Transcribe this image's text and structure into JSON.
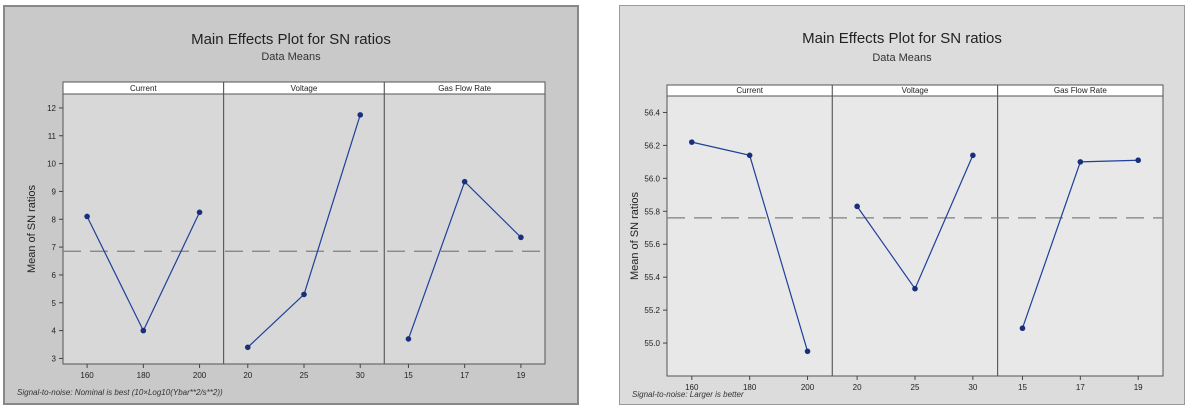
{
  "chart_data": [
    {
      "type": "line",
      "title": "Main Effects Plot for SN ratios",
      "subtitle": "Data Means",
      "ylabel": "Mean of SN ratios",
      "ylim": [
        2.8,
        12.5
      ],
      "yticks": [
        "3",
        "4",
        "5",
        "6",
        "7",
        "8",
        "9",
        "10",
        "11",
        "12"
      ],
      "reference_line": 6.85,
      "footnote": "Signal-to-noise: Nominal is best (10×Log10(Ybar**2/s**2))",
      "panels": [
        {
          "label": "Current",
          "categories": [
            "160",
            "180",
            "200"
          ],
          "values": [
            8.1,
            4.0,
            8.25
          ]
        },
        {
          "label": "Voltage",
          "categories": [
            "20",
            "25",
            "30"
          ],
          "values": [
            3.4,
            5.3,
            11.75
          ]
        },
        {
          "label": "Gas Flow Rate",
          "categories": [
            "15",
            "17",
            "19"
          ],
          "values": [
            3.7,
            9.35,
            7.35
          ]
        }
      ],
      "colors": {
        "line": "#1f3f9a",
        "marker": "#1a2f7a",
        "reference": "#7f7f7f",
        "panel": "#d8d8d8"
      }
    },
    {
      "type": "line",
      "title": "Main Effects Plot for SN ratios",
      "subtitle": "Data Means",
      "ylabel": "Mean of SN ratios",
      "ylim": [
        54.8,
        56.5
      ],
      "yticks": [
        "55.0",
        "55.2",
        "55.4",
        "55.6",
        "55.8",
        "56.0",
        "56.2",
        "56.4"
      ],
      "reference_line": 55.76,
      "footnote": "Signal-to-noise: Larger is better",
      "panels": [
        {
          "label": "Current",
          "categories": [
            "160",
            "180",
            "200"
          ],
          "values": [
            56.22,
            56.14,
            54.95
          ]
        },
        {
          "label": "Voltage",
          "categories": [
            "20",
            "25",
            "30"
          ],
          "values": [
            55.83,
            55.33,
            56.14
          ]
        },
        {
          "label": "Gas Flow Rate",
          "categories": [
            "15",
            "17",
            "19"
          ],
          "values": [
            55.09,
            56.1,
            56.11
          ]
        }
      ],
      "colors": {
        "line": "#1f3f9a",
        "marker": "#1a2f7a",
        "reference": "#7f7f7f",
        "panel": "#e8e8e8"
      }
    }
  ]
}
